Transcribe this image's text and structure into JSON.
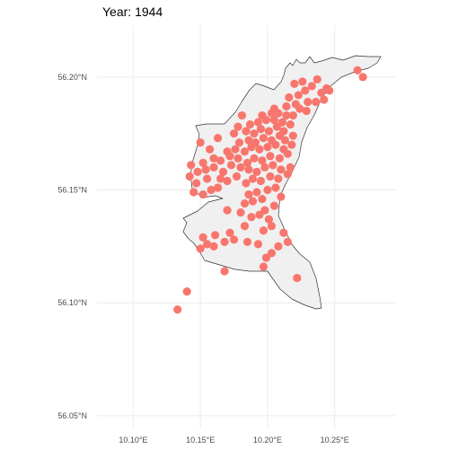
{
  "title": "Year: 1944",
  "colors": {
    "point": "#F8766D",
    "land": "#F0F0F0",
    "outline": "#333333",
    "grid": "#EBEBEB"
  },
  "axes": {
    "x_ticks": [
      {
        "value": 10.1,
        "label": "10.10°E"
      },
      {
        "value": 10.15,
        "label": "10.15°E"
      },
      {
        "value": 10.2,
        "label": "10.20°E"
      },
      {
        "value": 10.25,
        "label": "10.25°E"
      }
    ],
    "y_ticks": [
      {
        "value": 56.05,
        "label": "56.05°N"
      },
      {
        "value": 56.1,
        "label": "56.10°N"
      },
      {
        "value": 56.15,
        "label": "56.15°N"
      },
      {
        "value": 56.2,
        "label": "56.20°N"
      }
    ],
    "xlim": [
      10.073,
      10.295
    ],
    "ylim": [
      56.044,
      56.223
    ],
    "grid": true
  },
  "chart_data": {
    "type": "scatter",
    "title": "Year: 1944",
    "xlabel": "",
    "ylabel": "",
    "xlim": [
      10.073,
      10.295
    ],
    "ylim": [
      56.044,
      56.223
    ],
    "points": [
      [
        10.133,
        56.097
      ],
      [
        10.14,
        56.105
      ],
      [
        10.222,
        56.111
      ],
      [
        10.168,
        56.114
      ],
      [
        10.197,
        56.116
      ],
      [
        10.199,
        56.12
      ],
      [
        10.203,
        56.122
      ],
      [
        10.15,
        56.124
      ],
      [
        10.155,
        56.126
      ],
      [
        10.16,
        56.125
      ],
      [
        10.168,
        56.127
      ],
      [
        10.152,
        56.129
      ],
      [
        10.175,
        56.128
      ],
      [
        10.185,
        56.127
      ],
      [
        10.193,
        56.126
      ],
      [
        10.208,
        56.125
      ],
      [
        10.215,
        56.127
      ],
      [
        10.161,
        56.13
      ],
      [
        10.172,
        56.131
      ],
      [
        10.212,
        56.131
      ],
      [
        10.197,
        56.132
      ],
      [
        10.203,
        56.134
      ],
      [
        10.183,
        56.134
      ],
      [
        10.188,
        56.138
      ],
      [
        10.18,
        56.14
      ],
      [
        10.194,
        56.139
      ],
      [
        10.201,
        56.137
      ],
      [
        10.17,
        56.141
      ],
      [
        10.198,
        56.141
      ],
      [
        10.205,
        56.143
      ],
      [
        10.183,
        56.144
      ],
      [
        10.189,
        56.145
      ],
      [
        10.196,
        56.146
      ],
      [
        10.21,
        56.147
      ],
      [
        10.186,
        56.148
      ],
      [
        10.192,
        56.149
      ],
      [
        10.2,
        56.15
      ],
      [
        10.206,
        56.151
      ],
      [
        10.145,
        56.149
      ],
      [
        10.152,
        56.148
      ],
      [
        10.158,
        56.15
      ],
      [
        10.163,
        56.151
      ],
      [
        10.147,
        56.153
      ],
      [
        10.155,
        56.155
      ],
      [
        10.165,
        56.155
      ],
      [
        10.17,
        56.154
      ],
      [
        10.177,
        56.156
      ],
      [
        10.184,
        56.153
      ],
      [
        10.189,
        56.155
      ],
      [
        10.195,
        56.154
      ],
      [
        10.202,
        56.156
      ],
      [
        10.208,
        56.155
      ],
      [
        10.215,
        56.157
      ],
      [
        10.142,
        56.156
      ],
      [
        10.148,
        56.158
      ],
      [
        10.154,
        56.159
      ],
      [
        10.16,
        56.16
      ],
      [
        10.167,
        56.158
      ],
      [
        10.173,
        56.161
      ],
      [
        10.18,
        56.16
      ],
      [
        10.186,
        56.159
      ],
      [
        10.192,
        56.158
      ],
      [
        10.198,
        56.16
      ],
      [
        10.204,
        56.161
      ],
      [
        10.21,
        56.159
      ],
      [
        10.217,
        56.16
      ],
      [
        10.143,
        56.161
      ],
      [
        10.152,
        56.162
      ],
      [
        10.16,
        56.164
      ],
      [
        10.165,
        56.163
      ],
      [
        10.172,
        56.165
      ],
      [
        10.178,
        56.164
      ],
      [
        10.185,
        56.162
      ],
      [
        10.19,
        56.164
      ],
      [
        10.196,
        56.163
      ],
      [
        10.202,
        56.165
      ],
      [
        10.209,
        56.164
      ],
      [
        10.215,
        56.166
      ],
      [
        10.157,
        56.168
      ],
      [
        10.17,
        56.167
      ],
      [
        10.176,
        56.168
      ],
      [
        10.183,
        56.167
      ],
      [
        10.188,
        56.169
      ],
      [
        10.194,
        56.168
      ],
      [
        10.2,
        56.169
      ],
      [
        10.206,
        56.17
      ],
      [
        10.212,
        56.168
      ],
      [
        10.218,
        56.17
      ],
      [
        10.15,
        56.171
      ],
      [
        10.179,
        56.171
      ],
      [
        10.186,
        56.172
      ],
      [
        10.191,
        56.171
      ],
      [
        10.197,
        56.173
      ],
      [
        10.203,
        56.172
      ],
      [
        10.209,
        56.174
      ],
      [
        10.213,
        56.172
      ],
      [
        10.219,
        56.174
      ],
      [
        10.163,
        56.173
      ],
      [
        10.175,
        56.175
      ],
      [
        10.184,
        56.176
      ],
      [
        10.19,
        56.175
      ],
      [
        10.195,
        56.177
      ],
      [
        10.201,
        56.176
      ],
      [
        10.207,
        56.178
      ],
      [
        10.212,
        56.176
      ],
      [
        10.217,
        56.179
      ],
      [
        10.178,
        56.178
      ],
      [
        10.187,
        56.179
      ],
      [
        10.193,
        56.18
      ],
      [
        10.199,
        56.181
      ],
      [
        10.205,
        56.181
      ],
      [
        10.211,
        56.18
      ],
      [
        10.196,
        56.183
      ],
      [
        10.203,
        56.184
      ],
      [
        10.208,
        56.184
      ],
      [
        10.214,
        56.183
      ],
      [
        10.181,
        56.183
      ],
      [
        10.205,
        56.186
      ],
      [
        10.219,
        56.183
      ],
      [
        10.224,
        56.186
      ],
      [
        10.229,
        56.185
      ],
      [
        10.214,
        56.187
      ],
      [
        10.221,
        56.188
      ],
      [
        10.23,
        56.189
      ],
      [
        10.236,
        56.189
      ],
      [
        10.242,
        56.19
      ],
      [
        10.216,
        56.191
      ],
      [
        10.223,
        56.192
      ],
      [
        10.228,
        56.194
      ],
      [
        10.24,
        56.193
      ],
      [
        10.246,
        56.194
      ],
      [
        10.233,
        56.196
      ],
      [
        10.244,
        56.195
      ],
      [
        10.22,
        56.197
      ],
      [
        10.226,
        56.198
      ],
      [
        10.237,
        56.199
      ],
      [
        10.267,
        56.203
      ],
      [
        10.271,
        56.2
      ]
    ]
  }
}
